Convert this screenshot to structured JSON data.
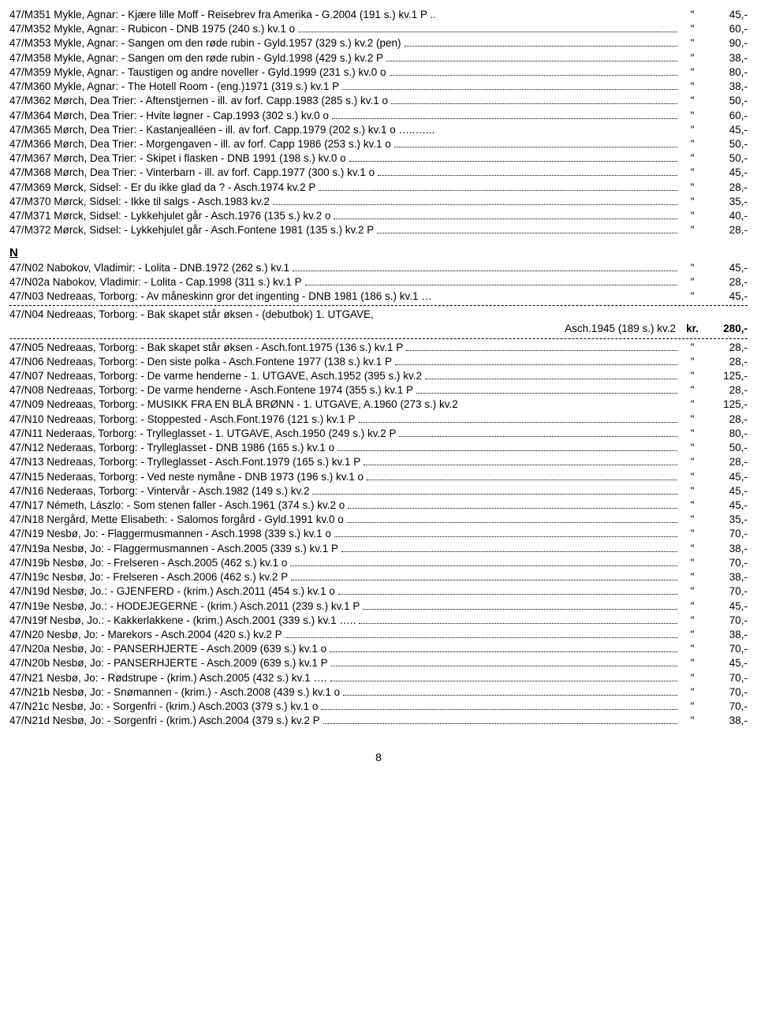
{
  "block1": [
    {
      "id": "47/M351",
      "desc": "Mykle, Agnar: - Kjære lille Moff - Reisebrev fra Amerika - G.2004 (191 s.) kv.1 P ..",
      "dots": false,
      "price": "45,-"
    },
    {
      "id": "47/M352",
      "desc": "Mykle, Agnar: - Rubicon - DNB 1975 (240 s.) kv.1 o",
      "dots": true,
      "price": "60,-"
    },
    {
      "id": "47/M353",
      "desc": "Mykle, Agnar: - Sangen om den røde rubin - Gyld.1957 (329 s.) kv.2 (pen)",
      "dots": true,
      "price": "90,-"
    },
    {
      "id": "47/M358",
      "desc": "Mykle, Agnar: - Sangen om den røde rubin - Gyld.1998 (429 s.) kv.2 P",
      "dots": true,
      "price": "38,-"
    },
    {
      "id": "47/M359",
      "desc": "Mykle, Agnar: - Taustigen og andre noveller - Gyld.1999 (231 s.) kv.0 o",
      "dots": true,
      "price": "80,-"
    },
    {
      "id": "47/M360",
      "desc": "Mykle, Agnar: - The Hotell Room - (eng.)1971 (319 s.) kv.1 P",
      "dots": true,
      "price": "38,-"
    },
    {
      "id": "47/M362",
      "desc": "Mørch, Dea Trier: - Aftenstjernen - ill. av forf. Capp.1983 (285 s.) kv.1 o",
      "dots": true,
      "price": "50,-"
    },
    {
      "id": "47/M364",
      "desc": "Mørch, Dea Trier: - Hvite løgner - Cap.1993 (302 s.) kv.0 o",
      "dots": true,
      "price": "60,-"
    },
    {
      "id": "47/M365",
      "desc": "Mørch, Dea Trier: - Kastanjealléen - ill. av forf. Capp.1979 (202 s.) kv.1 o …..…...",
      "dots": false,
      "price": "45,-"
    },
    {
      "id": "47/M366",
      "desc": "Mørch, Dea Trier: - Morgengaven - ill. av forf. Capp 1986 (253 s.) kv.1 o",
      "dots": true,
      "price": "50,-"
    },
    {
      "id": "47/M367",
      "desc": "Mørch, Dea Trier: - Skipet i flasken - DNB 1991 (198 s.) kv.0 o",
      "dots": true,
      "price": "50,-"
    },
    {
      "id": "47/M368",
      "desc": "Mørch, Dea Trier: - Vinterbarn - ill. av forf. Capp.1977 (300 s.) kv.1 o",
      "dots": true,
      "price": "45,-"
    },
    {
      "id": "47/M369",
      "desc": "Mørck, Sidsel: - Er du ikke glad da ? - Asch.1974 kv.2 P",
      "dots": true,
      "price": "28,-"
    },
    {
      "id": "47/M370",
      "desc": "Mørck, Sidsel: - Ikke til salgs - Asch.1983 kv.2",
      "dots": true,
      "price": "35,-"
    },
    {
      "id": "47/M371",
      "desc": "Mørck, Sidsel: - Lykkehjulet går - Asch.1976 (135 s.) kv.2 o",
      "dots": true,
      "price": "40,-"
    },
    {
      "id": "47/M372",
      "desc": "Mørck, Sidsel: - Lykkehjulet går - Asch.Fontene 1981 (135 s.) kv.2 P",
      "dots": true,
      "price": "28,-"
    }
  ],
  "section_n": "N",
  "block2": [
    {
      "id": "47/N02",
      "desc": "Nabokov, Vladimir: - Lolita - DNB.1972 (262 s.) kv.1",
      "dots": true,
      "price": "45,-"
    },
    {
      "id": "47/N02a",
      "desc": "Nabokov, Vladimir: - Lolita - Cap.1998 (311 s.) kv.1 P",
      "dots": true,
      "price": "28,-"
    },
    {
      "id": "47/N03",
      "desc": "Nedreaas, Torborg: - Av måneskinn gror det ingenting - DNB 1981 (186 s.) kv.1 …",
      "dots": false,
      "price": "45,-"
    }
  ],
  "featured": {
    "line1": "47/N04  Nedreaas, Torborg: - Bak skapet står øksen - (debutbok) 1. UTGAVE,",
    "cond": "Asch.1945 (189 s.) kv.2",
    "kr": "kr.",
    "price": "280,-"
  },
  "block3": [
    {
      "id": "47/N05",
      "desc": "Nedreaas, Torborg: - Bak skapet står øksen - Asch.font.1975 (136 s.) kv.1 P",
      "dots": true,
      "price": "28,-"
    },
    {
      "id": "47/N06",
      "desc": "Nedreaas, Torborg: - Den siste polka - Asch.Fontene 1977 (138 s.) kv.1 P",
      "dots": true,
      "price": "28,-"
    },
    {
      "id": "47/N07",
      "desc": "Nedreaas, Torborg: - De varme henderne - 1. UTGAVE, Asch.1952 (395 s.) kv.2",
      "dots": true,
      "price": "125,-"
    },
    {
      "id": "47/N08",
      "desc": "Nedreaas, Torborg: - De varme henderne - Asch.Fontene 1974 (355 s.) kv.1 P",
      "dots": true,
      "price": "28,-"
    },
    {
      "id": "47/N09",
      "desc": "Nedreaas, Torborg: - MUSIKK FRA EN BLÅ BRØNN - 1. UTGAVE, A.1960 (273 s.) kv.2",
      "dots": false,
      "price": "125,-"
    },
    {
      "id": "47/N10",
      "desc": "Nedreaas, Torborg: - Stoppested - Asch.Font.1976 (121 s.) kv.1 P",
      "dots": true,
      "price": "28,-"
    },
    {
      "id": "47/N11",
      "desc": "Nederaas, Torborg: - Trylleglasset - 1. UTGAVE, Asch.1950 (249 s.) kv.2 P",
      "dots": true,
      "price": "80,-"
    },
    {
      "id": "47/N12",
      "desc": "Nederaas, Torborg: - Trylleglasset - DNB 1986 (165 s.) kv.1 o",
      "dots": true,
      "price": "50,-"
    },
    {
      "id": "47/N13",
      "desc": "Nedreaas, Torborg: - Trylleglasset - Asch.Font.1979 (165 s.) kv.1 P",
      "dots": true,
      "price": "28,-"
    },
    {
      "id": "47/N15",
      "desc": "Nederaas, Torborg: - Ved neste nymåne - DNB 1973 (196 s.) kv.1 o",
      "dots": true,
      "price": "45,-"
    },
    {
      "id": "47/N16",
      "desc": "Nederaas, Torborg: - Vintervår - Asch.1982 (149 s.) kv.2",
      "dots": true,
      "price": "45,-"
    },
    {
      "id": "47/N17",
      "desc": "Németh, Lászlo: - Som stenen faller - Asch.1961 (374 s.) kv.2 o",
      "dots": true,
      "price": "45,-"
    },
    {
      "id": "47/N18",
      "desc": "Nergård, Mette Elisabeth: - Salomos forgård - Gyld.1991 kv.0 o",
      "dots": true,
      "price": "35,-"
    },
    {
      "id": "47/N19",
      "desc": "Nesbø, Jo: - Flaggermusmannen - Asch.1998 (339 s.) kv.1 o",
      "dots": true,
      "price": "70,-"
    },
    {
      "id": "47/N19a",
      "desc": "Nesbø, Jo: - Flaggermusmannen - Asch.2005 (339 s.) kv.1 P",
      "dots": true,
      "price": "38,-"
    },
    {
      "id": "47/N19b",
      "desc": "Nesbø, Jo: - Frelseren - Asch.2005 (462 s.) kv.1 o",
      "dots": true,
      "price": "70,-"
    },
    {
      "id": "47/N19c",
      "desc": "Nesbø, Jo: - Frelseren - Asch.2006 (462 s.) kv.2 P",
      "dots": true,
      "price": "38,-"
    },
    {
      "id": "47/N19d",
      "desc": "Nesbø, Jo.: - GJENFERD - (krim.) Asch.2011 (454 s.) kv.1 o",
      "dots": true,
      "price": "70,-"
    },
    {
      "id": "47/N19e",
      "desc": "Nesbø, Jo.: - HODEJEGERNE - (krim.) Asch.2011 (239 s.) kv.1 P",
      "dots": true,
      "price": "45,-"
    },
    {
      "id": "47/N19f",
      "desc": "Nesbø, Jo.: - Kakkerlakkene - (krim.) Asch.2001 (339 s.) kv.1 …..",
      "dots": true,
      "price": "70,-"
    },
    {
      "id": "47/N20",
      "desc": "Nesbø, Jo: - Marekors - Asch.2004 (420 s.) kv.2 P",
      "dots": true,
      "price": "38,-"
    },
    {
      "id": "47/N20a",
      "desc": "Nesbø, Jo: - PANSERHJERTE - Asch.2009 (639 s.) kv.1 o",
      "dots": true,
      "price": "70,-"
    },
    {
      "id": "47/N20b",
      "desc": "Nesbø, Jo: - PANSERHJERTE - Asch.2009 (639 s.) kv.1 P",
      "dots": true,
      "price": "45,-"
    },
    {
      "id": "47/N21",
      "desc": "Nesbø, Jo: - Rødstrupe - (krim.) Asch.2005 (432 s.) kv.1 ….",
      "dots": true,
      "price": "70,-"
    },
    {
      "id": "47/N21b",
      "desc": "Nesbø, Jo: - Snømannen - (krim.) - Asch.2008 (439 s.) kv.1 o",
      "dots": true,
      "price": "70,-"
    },
    {
      "id": "47/N21c",
      "desc": "Nesbø, Jo: - Sorgenfri - (krim.) Asch.2003 (379 s.) kv.1 o",
      "dots": true,
      "price": "70,-"
    },
    {
      "id": "47/N21d",
      "desc": "Nesbø, Jo: - Sorgenfri - (krim.) Asch.2004 (379 s.) kv.2 P",
      "dots": true,
      "price": "38,-"
    }
  ],
  "pagenum": "8"
}
